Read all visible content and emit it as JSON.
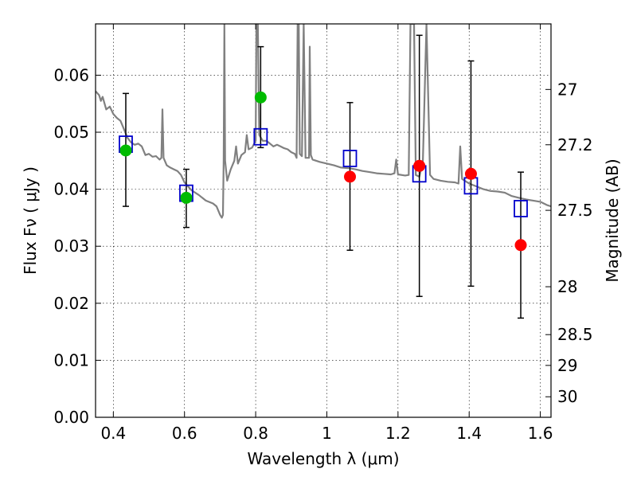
{
  "chart_data": {
    "type": "scatter",
    "xlabel": "Wavelength  λ (μm)",
    "ylabel": "Flux  Fν  ( μJy )",
    "ylabel_right": "Magnitude (AB)",
    "xlim": [
      0.35,
      1.63
    ],
    "ylim": [
      0.0,
      0.069
    ],
    "grid": true,
    "x_ticks": [
      0.4,
      0.6,
      0.8,
      1.0,
      1.2,
      1.4,
      1.6
    ],
    "x_tick_labels": [
      "0.4",
      "0.6",
      "0.8",
      "1",
      "1.2",
      "1.4",
      "1.6"
    ],
    "y_ticks": [
      0.0,
      0.01,
      0.02,
      0.03,
      0.04,
      0.05,
      0.06
    ],
    "y_tick_labels": [
      "0.00",
      "0.01",
      "0.02",
      "0.03",
      "0.04",
      "0.05",
      "0.06"
    ],
    "right_ticks": [
      {
        "flux": 0.0575,
        "label": "27"
      },
      {
        "flux": 0.0478,
        "label": "27.2"
      },
      {
        "flux": 0.0363,
        "label": "27.5"
      },
      {
        "flux": 0.0229,
        "label": "28"
      },
      {
        "flux": 0.0145,
        "label": "28.5"
      },
      {
        "flux": 0.0091,
        "label": "29"
      },
      {
        "flux": 0.0036,
        "label": "30"
      }
    ],
    "series": [
      {
        "kind": "line",
        "color": "#808080",
        "points": [
          [
            0.35,
            0.0572
          ],
          [
            0.36,
            0.0565
          ],
          [
            0.365,
            0.0555
          ],
          [
            0.37,
            0.0562
          ],
          [
            0.38,
            0.054
          ],
          [
            0.39,
            0.0545
          ],
          [
            0.4,
            0.0532
          ],
          [
            0.41,
            0.0525
          ],
          [
            0.42,
            0.052
          ],
          [
            0.43,
            0.0505
          ],
          [
            0.44,
            0.049
          ],
          [
            0.45,
            0.0482
          ],
          [
            0.46,
            0.0478
          ],
          [
            0.47,
            0.048
          ],
          [
            0.48,
            0.0475
          ],
          [
            0.49,
            0.046
          ],
          [
            0.5,
            0.0462
          ],
          [
            0.51,
            0.0457
          ],
          [
            0.52,
            0.0458
          ],
          [
            0.53,
            0.0452
          ],
          [
            0.535,
            0.0455
          ],
          [
            0.538,
            0.054
          ],
          [
            0.541,
            0.0455
          ],
          [
            0.55,
            0.0442
          ],
          [
            0.56,
            0.0438
          ],
          [
            0.57,
            0.0435
          ],
          [
            0.58,
            0.0432
          ],
          [
            0.59,
            0.0425
          ],
          [
            0.6,
            0.0412
          ],
          [
            0.62,
            0.0398
          ],
          [
            0.64,
            0.039
          ],
          [
            0.66,
            0.038
          ],
          [
            0.68,
            0.0375
          ],
          [
            0.69,
            0.037
          ],
          [
            0.7,
            0.0355
          ],
          [
            0.705,
            0.035
          ],
          [
            0.708,
            0.0355
          ],
          [
            0.71,
            0.045
          ],
          [
            0.712,
            0.069
          ],
          [
            0.714,
            0.045
          ],
          [
            0.72,
            0.0415
          ],
          [
            0.73,
            0.0435
          ],
          [
            0.74,
            0.045
          ],
          [
            0.745,
            0.0475
          ],
          [
            0.75,
            0.0445
          ],
          [
            0.76,
            0.046
          ],
          [
            0.77,
            0.0465
          ],
          [
            0.775,
            0.0495
          ],
          [
            0.78,
            0.047
          ],
          [
            0.79,
            0.0473
          ],
          [
            0.8,
            0.0485
          ],
          [
            0.802,
            0.069
          ],
          [
            0.806,
            0.069
          ],
          [
            0.81,
            0.0495
          ],
          [
            0.82,
            0.0485
          ],
          [
            0.83,
            0.0485
          ],
          [
            0.84,
            0.048
          ],
          [
            0.85,
            0.0475
          ],
          [
            0.86,
            0.0478
          ],
          [
            0.87,
            0.0475
          ],
          [
            0.88,
            0.0472
          ],
          [
            0.89,
            0.047
          ],
          [
            0.9,
            0.0465
          ],
          [
            0.91,
            0.0462
          ],
          [
            0.915,
            0.0455
          ],
          [
            0.918,
            0.069
          ],
          [
            0.921,
            0.069
          ],
          [
            0.924,
            0.0462
          ],
          [
            0.93,
            0.0458
          ],
          [
            0.935,
            0.069
          ],
          [
            0.94,
            0.0455
          ],
          [
            0.95,
            0.0455
          ],
          [
            0.952,
            0.065
          ],
          [
            0.955,
            0.046
          ],
          [
            0.96,
            0.0452
          ],
          [
            0.98,
            0.0448
          ],
          [
            1.0,
            0.0445
          ],
          [
            1.02,
            0.0442
          ],
          [
            1.04,
            0.0438
          ],
          [
            1.06,
            0.0437
          ],
          [
            1.08,
            0.0435
          ],
          [
            1.1,
            0.0432
          ],
          [
            1.12,
            0.043
          ],
          [
            1.14,
            0.0428
          ],
          [
            1.16,
            0.0427
          ],
          [
            1.18,
            0.0426
          ],
          [
            1.19,
            0.0428
          ],
          [
            1.195,
            0.0452
          ],
          [
            1.2,
            0.0426
          ],
          [
            1.22,
            0.0424
          ],
          [
            1.23,
            0.0425
          ],
          [
            1.235,
            0.069
          ],
          [
            1.245,
            0.069
          ],
          [
            1.25,
            0.0425
          ],
          [
            1.26,
            0.0422
          ],
          [
            1.27,
            0.045
          ],
          [
            1.28,
            0.069
          ],
          [
            1.29,
            0.0425
          ],
          [
            1.3,
            0.0418
          ],
          [
            1.32,
            0.0415
          ],
          [
            1.34,
            0.0413
          ],
          [
            1.36,
            0.0412
          ],
          [
            1.37,
            0.041
          ],
          [
            1.375,
            0.0475
          ],
          [
            1.38,
            0.0418
          ],
          [
            1.4,
            0.041
          ],
          [
            1.42,
            0.0405
          ],
          [
            1.44,
            0.04
          ],
          [
            1.46,
            0.0397
          ],
          [
            1.48,
            0.0396
          ],
          [
            1.5,
            0.0394
          ],
          [
            1.52,
            0.0388
          ],
          [
            1.54,
            0.0385
          ],
          [
            1.56,
            0.0382
          ],
          [
            1.58,
            0.038
          ],
          [
            1.6,
            0.0378
          ],
          [
            1.62,
            0.0372
          ],
          [
            1.63,
            0.037
          ]
        ]
      },
      {
        "kind": "markers",
        "marker": "square",
        "color": "#0000cc",
        "points": [
          [
            0.435,
            0.0479
          ],
          [
            0.605,
            0.0393
          ],
          [
            0.814,
            0.0492
          ],
          [
            1.065,
            0.0454
          ],
          [
            1.26,
            0.0427
          ],
          [
            1.405,
            0.0406
          ],
          [
            1.545,
            0.0366
          ]
        ]
      },
      {
        "kind": "markers",
        "marker": "circle",
        "color": "#00bb00",
        "points": [
          [
            0.435,
            0.0468,
            0.0568,
            0.037
          ],
          [
            0.605,
            0.0385,
            0.0435,
            0.0333
          ],
          [
            0.814,
            0.0561,
            0.065,
            0.0473
          ]
        ]
      },
      {
        "kind": "markers",
        "marker": "circle",
        "color": "#ff0000",
        "points": [
          [
            1.065,
            0.0422,
            0.0552,
            0.0293
          ],
          [
            1.26,
            0.0441,
            0.067,
            0.0212
          ],
          [
            1.405,
            0.0427,
            0.0625,
            0.023
          ],
          [
            1.545,
            0.0302,
            0.043,
            0.0174
          ]
        ]
      }
    ]
  }
}
